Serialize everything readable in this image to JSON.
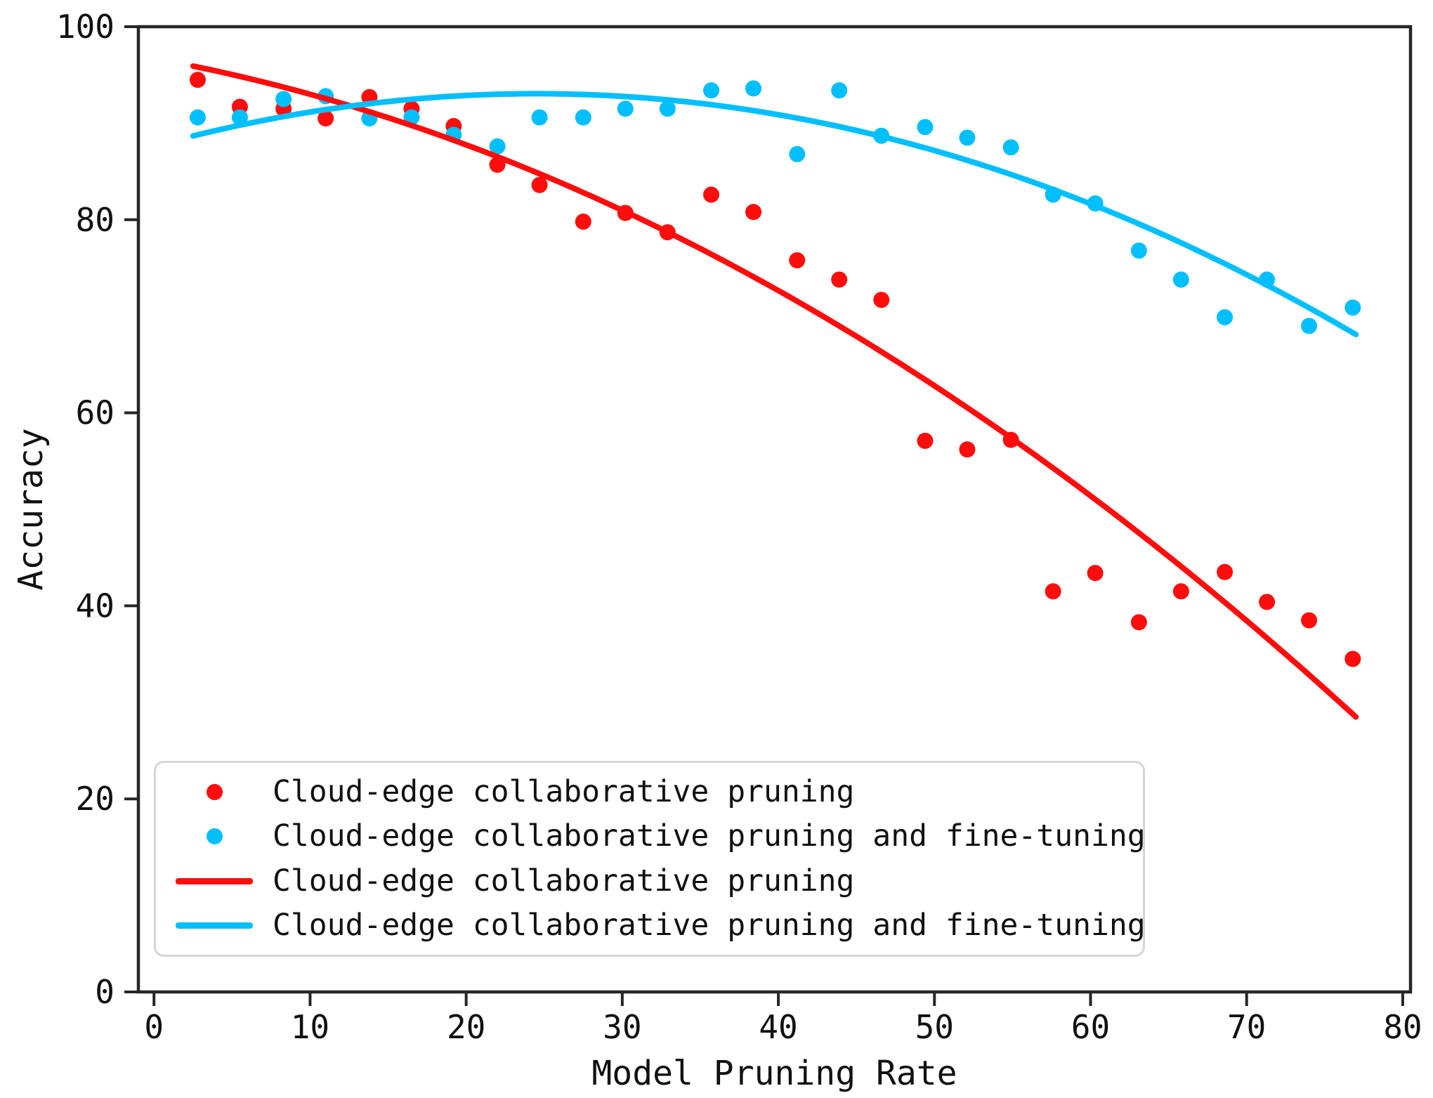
{
  "figure": {
    "background": "#ffffff",
    "spine_color": "#262626",
    "tick_label_color": "#111111"
  },
  "axes": {
    "xlabel": "Model Pruning Rate",
    "ylabel": "Accuracy"
  },
  "legend": {
    "entries": [
      {
        "label": "Cloud-edge collaborative pruning",
        "marker": "dot",
        "color": "#ff0c0c"
      },
      {
        "label": "Cloud-edge collaborative pruning and fine-tuning",
        "marker": "dot",
        "color": "#00bfff"
      },
      {
        "label": "Cloud-edge collaborative pruning",
        "marker": "line",
        "color": "#ff0c0c"
      },
      {
        "label": "Cloud-edge collaborative pruning and fine-tuning",
        "marker": "line",
        "color": "#00bfff"
      }
    ]
  },
  "chart_data": {
    "type": "scatter",
    "title": "",
    "xlabel": "Model Pruning Rate",
    "ylabel": "Accuracy",
    "xlim": [
      -1.0,
      80.5
    ],
    "ylim": [
      0,
      100
    ],
    "x_ticks": [
      0,
      10,
      20,
      30,
      40,
      50,
      60,
      70,
      80
    ],
    "y_ticks": [
      0,
      20,
      40,
      60,
      80,
      100
    ],
    "grid": false,
    "legend_position": "lower-left",
    "x": [
      2.8,
      5.5,
      8.3,
      11.0,
      13.8,
      16.5,
      19.2,
      22.0,
      24.7,
      27.5,
      30.2,
      32.9,
      35.7,
      38.4,
      41.2,
      43.9,
      46.6,
      49.4,
      52.1,
      54.9,
      57.6,
      60.3,
      63.1,
      65.8,
      68.6,
      71.3,
      74.0,
      76.8
    ],
    "series": [
      {
        "name": "Cloud-edge collaborative pruning",
        "kind": "scatter",
        "color": "#ff0c0c",
        "values": [
          94.5,
          91.7,
          91.5,
          90.5,
          92.7,
          91.5,
          89.7,
          85.7,
          83.6,
          79.8,
          80.7,
          78.7,
          82.6,
          80.8,
          75.8,
          73.8,
          71.7,
          57.1,
          56.2,
          57.2,
          41.5,
          43.4,
          38.3,
          41.5,
          43.5,
          40.4,
          38.5,
          34.5
        ]
      },
      {
        "name": "Cloud-edge collaborative pruning and fine-tuning",
        "kind": "scatter",
        "color": "#00bfff",
        "values": [
          90.6,
          90.6,
          92.5,
          92.8,
          90.5,
          90.6,
          88.8,
          87.6,
          90.6,
          90.6,
          91.5,
          91.5,
          93.4,
          93.6,
          86.8,
          93.4,
          88.7,
          89.6,
          88.5,
          87.5,
          82.6,
          81.7,
          76.8,
          73.8,
          69.9,
          73.8,
          69.0,
          70.9
        ]
      },
      {
        "name": "Cloud-edge collaborative pruning",
        "kind": "fit-line",
        "color": "#ff0c0c",
        "poly_coeffs": [
          96.7,
          -0.293,
          -0.0077
        ],
        "domain": [
          2.5,
          77.0
        ]
      },
      {
        "name": "Cloud-edge collaborative pruning and fine-tuning",
        "kind": "fit-line",
        "color": "#00bfff",
        "poly_coeffs": [
          87.63,
          0.4433,
          -0.00905
        ],
        "domain": [
          2.5,
          77.0
        ]
      }
    ]
  }
}
